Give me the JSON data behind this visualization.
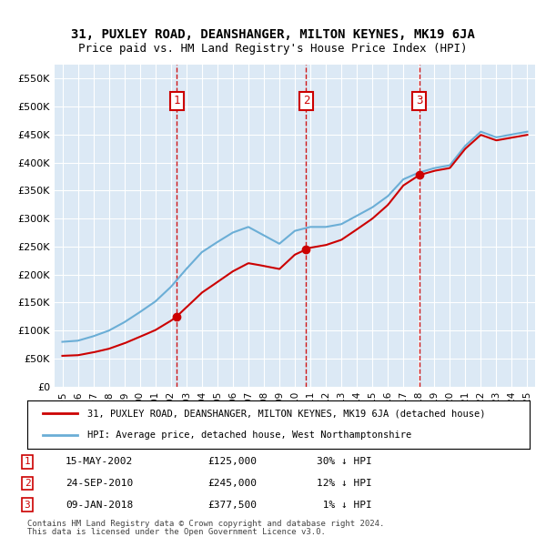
{
  "title1": "31, PUXLEY ROAD, DEANSHANGER, MILTON KEYNES, MK19 6JA",
  "title2": "Price paid vs. HM Land Registry's House Price Index (HPI)",
  "legend_line1": "31, PUXLEY ROAD, DEANSHANGER, MILTON KEYNES, MK19 6JA (detached house)",
  "legend_line2": "HPI: Average price, detached house, West Northamptonshire",
  "footer1": "Contains HM Land Registry data © Crown copyright and database right 2024.",
  "footer2": "This data is licensed under the Open Government Licence v3.0.",
  "sales": [
    {
      "num": 1,
      "date": "15-MAY-2002",
      "price": "£125,000",
      "pct": "30% ↓ HPI",
      "year": 2002.37,
      "value": 125000
    },
    {
      "num": 2,
      "date": "24-SEP-2010",
      "price": "£245,000",
      "pct": "12% ↓ HPI",
      "year": 2010.73,
      "value": 245000
    },
    {
      "num": 3,
      "date": "09-JAN-2018",
      "price": "£377,500",
      "pct": "1% ↓ HPI",
      "year": 2018.03,
      "value": 377500
    }
  ],
  "hpi_color": "#6baed6",
  "price_color": "#cc0000",
  "background_color": "#dce9f5",
  "plot_bg": "#dce9f5",
  "ylim": [
    0,
    575000
  ],
  "yticks": [
    0,
    50000,
    100000,
    150000,
    200000,
    250000,
    300000,
    350000,
    400000,
    450000,
    500000,
    550000
  ],
  "ytick_labels": [
    "£0",
    "£50K",
    "£100K",
    "£150K",
    "£200K",
    "£250K",
    "£300K",
    "£350K",
    "£400K",
    "£450K",
    "£500K",
    "£550K"
  ],
  "xlim_start": 1994.5,
  "xlim_end": 2025.5,
  "xticks": [
    1995,
    1996,
    1997,
    1998,
    1999,
    2000,
    2001,
    2002,
    2003,
    2004,
    2005,
    2006,
    2007,
    2008,
    2009,
    2010,
    2011,
    2012,
    2013,
    2014,
    2015,
    2016,
    2017,
    2018,
    2019,
    2020,
    2021,
    2022,
    2023,
    2024,
    2025
  ]
}
